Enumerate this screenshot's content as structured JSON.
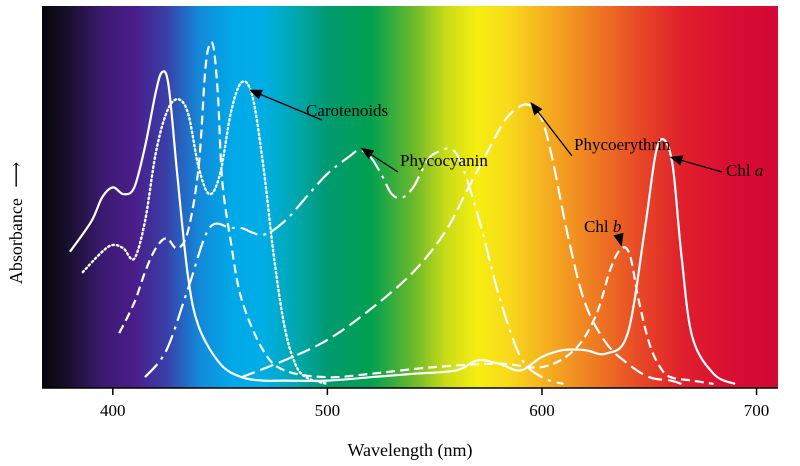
{
  "chart_data": {
    "type": "line",
    "title": "",
    "xlabel": "Wavelength (nm)",
    "ylabel": "Absorbance",
    "ylabel_arrow": "⟶",
    "xlim": [
      367,
      710
    ],
    "ylim": [
      0,
      1
    ],
    "x_ticks": [
      400,
      500,
      600,
      700
    ],
    "x_tick_labels": [
      "400",
      "500",
      "600",
      "700"
    ],
    "background": "visible-spectrum gradient (black → violet → blue → cyan → green → yellow → orange → red)",
    "spectrum_stops": [
      {
        "nm": 367,
        "color": "#05060a"
      },
      {
        "nm": 380,
        "color": "#1a1030"
      },
      {
        "nm": 395,
        "color": "#3b1a70"
      },
      {
        "nm": 410,
        "color": "#4a1d8a"
      },
      {
        "nm": 425,
        "color": "#3a3fa8"
      },
      {
        "nm": 440,
        "color": "#1488d8"
      },
      {
        "nm": 455,
        "color": "#00a8e8"
      },
      {
        "nm": 470,
        "color": "#00aee6"
      },
      {
        "nm": 485,
        "color": "#00a8b0"
      },
      {
        "nm": 500,
        "color": "#009a70"
      },
      {
        "nm": 520,
        "color": "#00a050"
      },
      {
        "nm": 540,
        "color": "#6ab82c"
      },
      {
        "nm": 555,
        "color": "#c8dc18"
      },
      {
        "nm": 570,
        "color": "#f6ee10"
      },
      {
        "nm": 585,
        "color": "#f8d81c"
      },
      {
        "nm": 605,
        "color": "#f4a820"
      },
      {
        "nm": 625,
        "color": "#ee7a22"
      },
      {
        "nm": 645,
        "color": "#e84a26"
      },
      {
        "nm": 665,
        "color": "#e0202c"
      },
      {
        "nm": 690,
        "color": "#d80c34"
      },
      {
        "nm": 710,
        "color": "#d40a34"
      }
    ],
    "series": [
      {
        "name": "Chl a",
        "style": "solid",
        "x": [
          380,
          390,
          395,
          400,
          405,
          410,
          415,
          420,
          423,
          426,
          430,
          435,
          440,
          450,
          460,
          470,
          480,
          500,
          520,
          540,
          560,
          570,
          580,
          590,
          600,
          610,
          620,
          630,
          640,
          648,
          653,
          657,
          661,
          665,
          670,
          680,
          690
        ],
        "y": [
          0.39,
          0.48,
          0.55,
          0.58,
          0.56,
          0.58,
          0.7,
          0.86,
          0.92,
          0.88,
          0.62,
          0.32,
          0.17,
          0.06,
          0.02,
          0.01,
          0.01,
          0.01,
          0.02,
          0.03,
          0.04,
          0.07,
          0.06,
          0.04,
          0.08,
          0.1,
          0.1,
          0.09,
          0.15,
          0.46,
          0.68,
          0.72,
          0.64,
          0.38,
          0.14,
          0.03,
          0.0
        ]
      },
      {
        "name": "Chl b",
        "style": "dashed",
        "x": [
          403,
          410,
          415,
          420,
          425,
          430,
          435,
          440,
          443,
          445,
          447,
          449,
          451,
          455,
          460,
          470,
          480,
          500,
          520,
          550,
          580,
          600,
          615,
          625,
          632,
          637,
          641,
          645,
          650,
          655,
          660,
          670,
          680
        ],
        "y": [
          0.15,
          0.24,
          0.33,
          0.4,
          0.43,
          0.4,
          0.45,
          0.64,
          0.92,
          1.0,
          0.99,
          0.85,
          0.6,
          0.42,
          0.25,
          0.1,
          0.04,
          0.02,
          0.03,
          0.05,
          0.06,
          0.05,
          0.1,
          0.2,
          0.34,
          0.4,
          0.38,
          0.25,
          0.12,
          0.05,
          0.02,
          0.01,
          0.0
        ]
      },
      {
        "name": "Carotenoids",
        "style": "dotted",
        "x": [
          386,
          395,
          400,
          405,
          410,
          415,
          420,
          425,
          430,
          435,
          440,
          445,
          450,
          455,
          460,
          465,
          470,
          475,
          480,
          485,
          490,
          500
        ],
        "y": [
          0.33,
          0.39,
          0.41,
          0.4,
          0.37,
          0.48,
          0.68,
          0.8,
          0.84,
          0.8,
          0.64,
          0.56,
          0.62,
          0.8,
          0.89,
          0.85,
          0.65,
          0.38,
          0.17,
          0.06,
          0.02,
          0.0
        ]
      },
      {
        "name": "Phycocyanin",
        "style": "dash-dot",
        "x": [
          415,
          425,
          435,
          445,
          455,
          460,
          470,
          480,
          490,
          500,
          510,
          515,
          520,
          525,
          530,
          535,
          540,
          545,
          550,
          560,
          570,
          580,
          590,
          600,
          610
        ],
        "y": [
          0.02,
          0.1,
          0.28,
          0.46,
          0.46,
          0.46,
          0.44,
          0.48,
          0.55,
          0.62,
          0.67,
          0.69,
          0.67,
          0.62,
          0.56,
          0.55,
          0.58,
          0.64,
          0.68,
          0.68,
          0.5,
          0.26,
          0.08,
          0.02,
          0.0
        ]
      },
      {
        "name": "Phycoerythrin",
        "style": "long-dash",
        "x": [
          460,
          480,
          500,
          520,
          540,
          555,
          565,
          575,
          583,
          590,
          595,
          600,
          605,
          612,
          620,
          630,
          640,
          650,
          660,
          665
        ],
        "y": [
          0.02,
          0.07,
          0.13,
          0.22,
          0.33,
          0.45,
          0.57,
          0.69,
          0.78,
          0.82,
          0.82,
          0.78,
          0.66,
          0.44,
          0.24,
          0.12,
          0.06,
          0.02,
          0.01,
          0.0
        ]
      }
    ],
    "annotations": [
      {
        "text": "Carotenoids",
        "series": "Carotenoids",
        "arrow_to_nm": 464
      },
      {
        "text": "Phycocyanin",
        "series": "Phycocyanin",
        "arrow_to_nm": 516
      },
      {
        "text": "Phycoerythrin",
        "series": "Phycoerythrin",
        "arrow_to_nm": 595
      },
      {
        "text_main": "Chl ",
        "text_italic": "b",
        "series": "Chl b",
        "arrow_to_nm": 637
      },
      {
        "text_main": "Chl ",
        "text_italic": "a",
        "series": "Chl a",
        "arrow_to_nm": 660
      }
    ],
    "grid": false,
    "legend": "none"
  }
}
